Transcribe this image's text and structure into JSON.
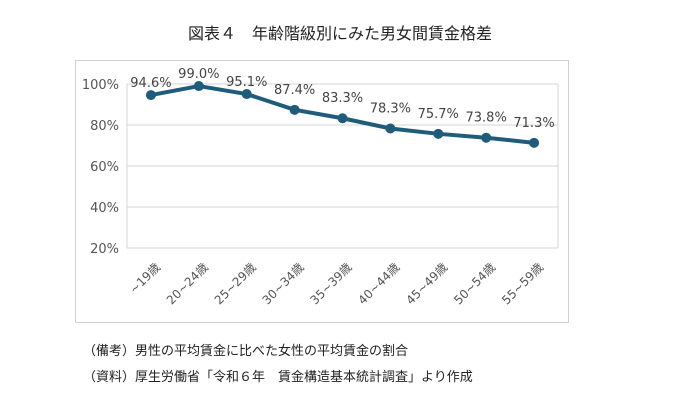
{
  "title": "図表４　年齢階級別にみた男女間賃金格差",
  "chart_data": {
    "type": "line",
    "categories": [
      "~19歳",
      "20~24歳",
      "25~29歳",
      "30~34歳",
      "35~39歳",
      "40~44歳",
      "45~49歳",
      "50~54歳",
      "55~59歳"
    ],
    "values": [
      94.6,
      99.0,
      95.1,
      87.4,
      83.3,
      78.3,
      75.7,
      73.8,
      71.3
    ],
    "data_labels": [
      "94.6%",
      "99.0%",
      "95.1%",
      "87.4%",
      "83.3%",
      "78.3%",
      "75.7%",
      "73.8%",
      "71.3%"
    ],
    "ylim": [
      20,
      100
    ],
    "yticks": [
      "20%",
      "40%",
      "60%",
      "80%",
      "100%"
    ],
    "grid": true,
    "line_color": "#1f5c7a"
  },
  "notes": [
    "（備考）男性の平均賃金に比べた女性の平均賃金の割合",
    "（資料）厚生労働省「令和６年　賃金構造基本統計調査」より作成"
  ]
}
